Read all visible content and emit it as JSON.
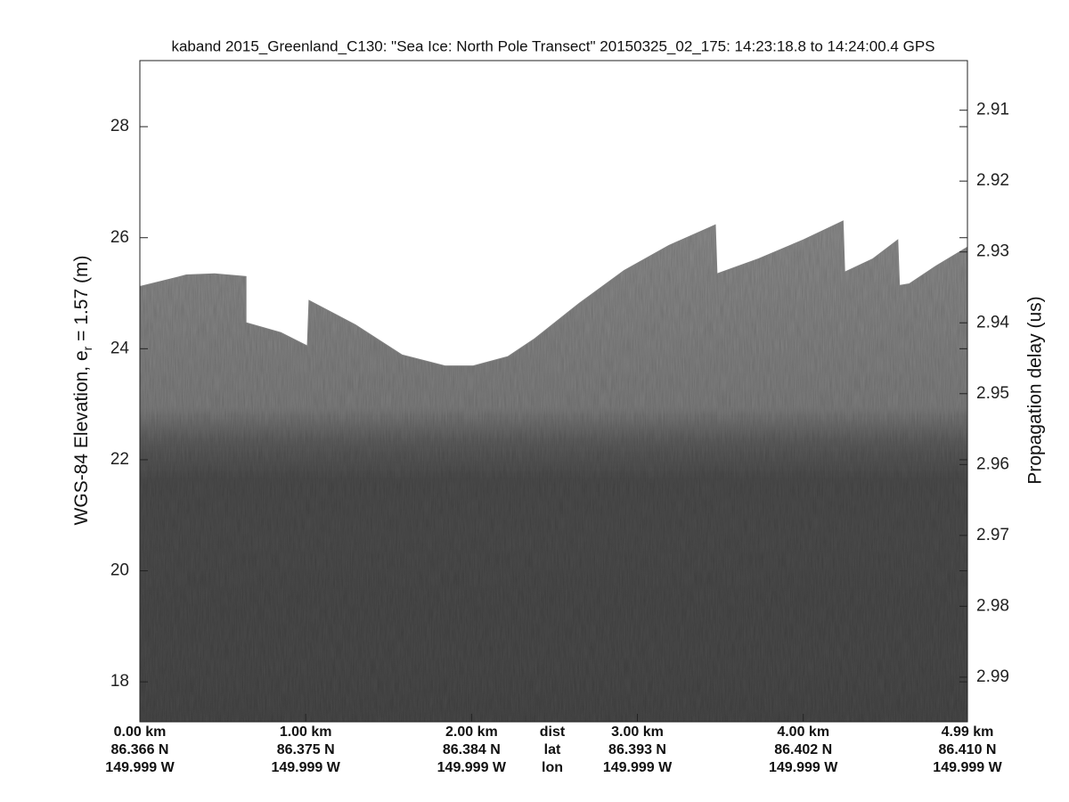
{
  "chart_data": {
    "type": "echogram",
    "title": "kaband 2015_Greenland_C130: \"Sea Ice: North Pole Transect\"  20150325_02_175: 14:23:18.8 to 14:24:00.4 GPS",
    "ylabel": "WGS-84 Elevation, e",
    "ylabel_sub": "r",
    "ylabel_rest": " = 1.57 (m)",
    "y2label": "Propagation delay (us)",
    "xlim": [
      0,
      4.99
    ],
    "xticks": [
      {
        "value": 0,
        "label": "0.00 km"
      },
      {
        "value": 1,
        "label": "1.00 km"
      },
      {
        "value": 2,
        "label": "2.00 km"
      },
      {
        "value": 3,
        "label": "3.00 km"
      },
      {
        "value": 4,
        "label": "4.00 km"
      },
      {
        "value": 4.99,
        "label": "4.99 km"
      }
    ],
    "xtick_lat": [
      "86.366 N",
      "86.375 N",
      "86.384 N",
      "86.393 N",
      "86.402 N",
      "86.410 N"
    ],
    "xtick_lon": [
      "149.999 W",
      "149.999 W",
      "149.999 W",
      "149.999 W",
      "149.999 W",
      "149.999 W"
    ],
    "xtick_row_names": [
      "dist",
      "lat",
      "lon"
    ],
    "ylim": [
      17.28,
      29.19
    ],
    "yticks": [
      18,
      20,
      22,
      24,
      26,
      28
    ],
    "y2lim": [
      2.9963,
      2.903
    ],
    "y2ticks": [
      2.91,
      2.92,
      2.93,
      2.94,
      2.95,
      2.96,
      2.97,
      2.98,
      2.99
    ],
    "surface": {
      "color": "#808080",
      "x": [
        0,
        0.23,
        0.28,
        0.45,
        0.64,
        0.64,
        0.85,
        1.01,
        1.02,
        1.3,
        1.58,
        1.84,
        2.01,
        2.22,
        2.38,
        2.65,
        2.92,
        3.19,
        3.47,
        3.48,
        3.73,
        4.0,
        4.24,
        4.25,
        4.42,
        4.57,
        4.58,
        4.64,
        4.8,
        4.99
      ],
      "values": [
        25.12,
        25.29,
        25.33,
        25.35,
        25.3,
        24.47,
        24.29,
        24.05,
        24.87,
        24.43,
        23.89,
        23.69,
        23.69,
        23.86,
        24.18,
        24.82,
        25.41,
        25.86,
        26.23,
        25.35,
        25.62,
        25.96,
        26.3,
        25.38,
        25.62,
        25.96,
        25.14,
        25.17,
        25.49,
        25.83
      ]
    }
  }
}
